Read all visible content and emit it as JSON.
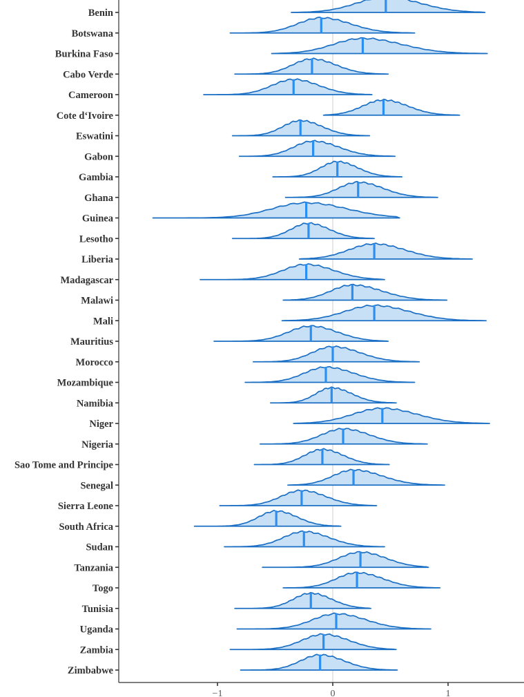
{
  "chart_data": {
    "type": "ridgeline",
    "title": "",
    "xlabel": "",
    "ylabel": "",
    "xlim": [
      -1.85,
      1.65
    ],
    "x_ticks": [
      -1,
      0,
      1
    ],
    "x_tick_labels": [
      "−1",
      "0",
      "1"
    ],
    "reference_line_x": 0,
    "colors": {
      "fill": "#c8e0f6",
      "outline": "#1a6fc4",
      "median": "#2a8ff0",
      "zero_line": "#dddddd"
    },
    "series": [
      {
        "name": "Benin",
        "median": 0.46,
        "min": -0.36,
        "max": 1.32,
        "sd": 0.3
      },
      {
        "name": "Botswana",
        "median": -0.1,
        "min": -0.89,
        "max": 0.71,
        "sd": 0.24
      },
      {
        "name": "Burkina Faso",
        "median": 0.26,
        "min": -0.53,
        "max": 1.34,
        "sd": 0.3
      },
      {
        "name": "Cabo Verde",
        "median": -0.18,
        "min": -0.85,
        "max": 0.48,
        "sd": 0.2
      },
      {
        "name": "Cameroon",
        "median": -0.34,
        "min": -1.12,
        "max": 0.34,
        "sd": 0.22
      },
      {
        "name": "Cote d‘Ivoire",
        "median": 0.44,
        "min": -0.08,
        "max": 1.1,
        "sd": 0.21
      },
      {
        "name": "Eswatini",
        "median": -0.28,
        "min": -0.87,
        "max": 0.32,
        "sd": 0.18
      },
      {
        "name": "Gabon",
        "median": -0.17,
        "min": -0.81,
        "max": 0.54,
        "sd": 0.2
      },
      {
        "name": "Gambia",
        "median": 0.04,
        "min": -0.52,
        "max": 0.6,
        "sd": 0.17
      },
      {
        "name": "Ghana",
        "median": 0.22,
        "min": -0.41,
        "max": 0.91,
        "sd": 0.2
      },
      {
        "name": "Guinea",
        "median": -0.23,
        "min": -1.56,
        "max": 0.58,
        "sd": 0.35
      },
      {
        "name": "Lesotho",
        "median": -0.21,
        "min": -0.87,
        "max": 0.36,
        "sd": 0.18
      },
      {
        "name": "Liberia",
        "median": 0.36,
        "min": -0.29,
        "max": 1.21,
        "sd": 0.26
      },
      {
        "name": "Madagascar",
        "median": -0.23,
        "min": -1.15,
        "max": 0.45,
        "sd": 0.24
      },
      {
        "name": "Malawi",
        "median": 0.17,
        "min": -0.43,
        "max": 0.99,
        "sd": 0.22
      },
      {
        "name": "Mali",
        "median": 0.36,
        "min": -0.44,
        "max": 1.33,
        "sd": 0.3
      },
      {
        "name": "Mauritius",
        "median": -0.19,
        "min": -1.03,
        "max": 0.48,
        "sd": 0.23
      },
      {
        "name": "Morocco",
        "median": 0.0,
        "min": -0.69,
        "max": 0.75,
        "sd": 0.21
      },
      {
        "name": "Mozambique",
        "median": -0.06,
        "min": -0.76,
        "max": 0.71,
        "sd": 0.22
      },
      {
        "name": "Namibia",
        "median": -0.01,
        "min": -0.54,
        "max": 0.55,
        "sd": 0.16
      },
      {
        "name": "Niger",
        "median": 0.43,
        "min": -0.34,
        "max": 1.36,
        "sd": 0.3
      },
      {
        "name": "Nigeria",
        "median": 0.09,
        "min": -0.63,
        "max": 0.82,
        "sd": 0.22
      },
      {
        "name": "Sao Tome and Principe",
        "median": -0.09,
        "min": -0.68,
        "max": 0.49,
        "sd": 0.18
      },
      {
        "name": "Senegal",
        "median": 0.18,
        "min": -0.39,
        "max": 0.97,
        "sd": 0.21
      },
      {
        "name": "Sierra Leone",
        "median": -0.27,
        "min": -0.98,
        "max": 0.38,
        "sd": 0.21
      },
      {
        "name": "South Africa",
        "median": -0.49,
        "min": -1.2,
        "max": 0.07,
        "sd": 0.18
      },
      {
        "name": "Sudan",
        "median": -0.25,
        "min": -0.94,
        "max": 0.45,
        "sd": 0.21
      },
      {
        "name": "Tanzania",
        "median": 0.24,
        "min": -0.61,
        "max": 0.83,
        "sd": 0.22
      },
      {
        "name": "Togo",
        "median": 0.21,
        "min": -0.43,
        "max": 0.93,
        "sd": 0.21
      },
      {
        "name": "Tunisia",
        "median": -0.19,
        "min": -0.85,
        "max": 0.33,
        "sd": 0.18
      },
      {
        "name": "Uganda",
        "median": 0.03,
        "min": -0.83,
        "max": 0.85,
        "sd": 0.24
      },
      {
        "name": "Zambia",
        "median": -0.08,
        "min": -0.89,
        "max": 0.55,
        "sd": 0.22
      },
      {
        "name": "Zimbabwe",
        "median": -0.11,
        "min": -0.8,
        "max": 0.56,
        "sd": 0.2
      }
    ]
  }
}
